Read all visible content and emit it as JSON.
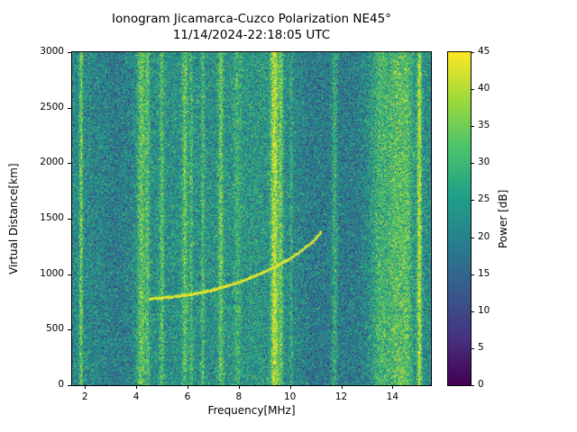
{
  "chart_data": {
    "type": "heatmap",
    "title": "Ionogram Jicamarca-Cuzco Polarization NE45°",
    "subtitle": "11/14/2024-22:18:05 UTC",
    "xlabel": "Frequency[MHz]",
    "ylabel": "Virtual Distance[km]",
    "colorbar_label": "Power [dB]",
    "x_range": [
      1.5,
      15.5
    ],
    "y_range": [
      0,
      3000
    ],
    "power_range": [
      0,
      45
    ],
    "x_ticks": [
      2,
      4,
      6,
      8,
      10,
      12,
      14
    ],
    "y_ticks": [
      0,
      500,
      1000,
      1500,
      2000,
      2500,
      3000
    ],
    "colorbar_ticks": [
      0,
      5,
      10,
      15,
      20,
      25,
      30,
      35,
      40,
      45
    ],
    "colormap": "viridis",
    "colormap_stops": [
      [
        0.0,
        [
          68,
          1,
          84
        ]
      ],
      [
        0.14,
        [
          70,
          50,
          127
        ]
      ],
      [
        0.29,
        [
          54,
          92,
          141
        ]
      ],
      [
        0.43,
        [
          39,
          127,
          142
        ]
      ],
      [
        0.57,
        [
          31,
          161,
          135
        ]
      ],
      [
        0.71,
        [
          74,
          194,
          109
        ]
      ],
      [
        0.86,
        [
          159,
          218,
          58
        ]
      ],
      [
        1.0,
        [
          253,
          231,
          37
        ]
      ]
    ],
    "noise": {
      "mean": 22,
      "spread": 12,
      "dropout_chance": 0.03,
      "dropout_depth": 10,
      "seed": 42
    },
    "background_profile": [
      [
        1.5,
        0
      ],
      [
        2.4,
        -1
      ],
      [
        3.2,
        -3
      ],
      [
        4.0,
        -1
      ],
      [
        4.6,
        1
      ],
      [
        7.0,
        1
      ],
      [
        8.8,
        2
      ],
      [
        9.9,
        0
      ],
      [
        10.8,
        -3
      ],
      [
        12.6,
        -3
      ],
      [
        13.4,
        1
      ],
      [
        14.6,
        2
      ],
      [
        15.5,
        0
      ]
    ],
    "rfi_bands": [
      [
        1.85,
        0.05,
        16
      ],
      [
        4.2,
        0.12,
        14
      ],
      [
        4.45,
        0.06,
        10
      ],
      [
        5.0,
        0.06,
        11
      ],
      [
        5.9,
        0.08,
        12
      ],
      [
        6.15,
        0.05,
        8
      ],
      [
        6.6,
        0.05,
        9
      ],
      [
        7.3,
        0.07,
        13
      ],
      [
        7.95,
        0.1,
        6
      ],
      [
        9.4,
        0.1,
        24
      ],
      [
        9.65,
        0.06,
        14
      ],
      [
        10.05,
        0.04,
        7
      ],
      [
        11.75,
        0.08,
        10
      ],
      [
        13.55,
        0.25,
        8
      ],
      [
        14.15,
        0.2,
        10
      ],
      [
        14.55,
        0.15,
        9
      ],
      [
        15.05,
        0.06,
        22
      ]
    ],
    "trace": {
      "name": "ionospheric-echo-trace",
      "power": 43,
      "points": [
        [
          4.5,
          780
        ],
        [
          5.0,
          790
        ],
        [
          5.5,
          800
        ],
        [
          6.0,
          815
        ],
        [
          6.5,
          835
        ],
        [
          7.0,
          860
        ],
        [
          7.5,
          895
        ],
        [
          8.0,
          930
        ],
        [
          8.5,
          975
        ],
        [
          9.0,
          1025
        ],
        [
          9.5,
          1080
        ],
        [
          10.0,
          1145
        ],
        [
          10.5,
          1225
        ],
        [
          10.9,
          1300
        ],
        [
          11.2,
          1380
        ]
      ]
    }
  }
}
